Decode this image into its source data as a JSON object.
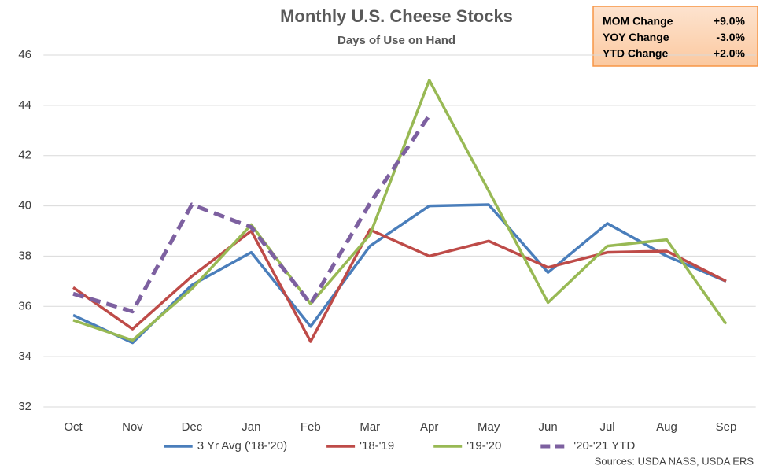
{
  "chart_data": {
    "type": "line",
    "title": "Monthly U.S. Cheese Stocks",
    "subtitle": "Days of Use on Hand",
    "categories": [
      "Oct",
      "Nov",
      "Dec",
      "Jan",
      "Feb",
      "Mar",
      "Apr",
      "May",
      "Jun",
      "Jul",
      "Aug",
      "Sep"
    ],
    "series": [
      {
        "name": "3 Yr Avg ('18-'20)",
        "color": "#4a7ebb",
        "dashed": false,
        "values": [
          35.65,
          34.55,
          36.85,
          38.15,
          35.2,
          38.4,
          40.0,
          40.05,
          37.35,
          39.3,
          38.0,
          37.0
        ]
      },
      {
        "name": "'18-'19",
        "color": "#be4b48",
        "dashed": false,
        "values": [
          36.75,
          35.1,
          37.2,
          39.0,
          34.6,
          39.05,
          38.0,
          38.6,
          37.55,
          38.15,
          38.2,
          37.0
        ]
      },
      {
        "name": "'19-'20",
        "color": "#98b954",
        "dashed": false,
        "values": [
          35.45,
          34.65,
          36.7,
          39.25,
          36.1,
          38.85,
          45.0,
          40.6,
          36.15,
          38.4,
          38.65,
          35.3
        ]
      },
      {
        "name": "'20-'21 YTD",
        "color": "#7d60a0",
        "dashed": true,
        "values": [
          36.5,
          35.8,
          40.05,
          39.15,
          36.1,
          40.1,
          43.6,
          null,
          null,
          null,
          null,
          null
        ]
      }
    ],
    "ylim": [
      32,
      46
    ],
    "yticks": [
      32,
      34,
      36,
      38,
      40,
      42,
      44,
      46
    ],
    "grid": true,
    "legend": "bottom",
    "summary_box": [
      [
        "MOM Change",
        "+9.0%"
      ],
      [
        "YOY Change",
        "-3.0%"
      ],
      [
        "YTD Change",
        "+2.0%"
      ]
    ],
    "source": "Sources: USDA NASS, USDA ERS"
  }
}
